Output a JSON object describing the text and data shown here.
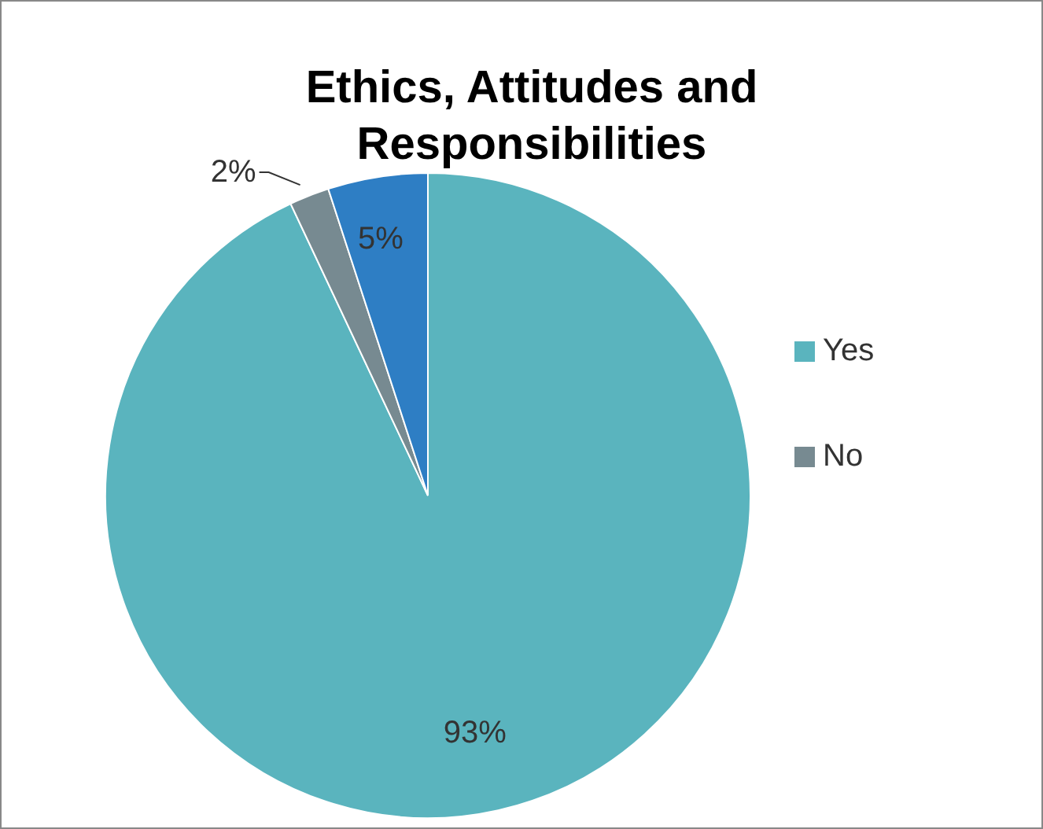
{
  "chart_data": {
    "type": "pie",
    "title": "Ethics, Attitudes and Responsibilities",
    "categories": [
      "Yes",
      "No",
      null
    ],
    "values": [
      93,
      2,
      5
    ],
    "colors": [
      "#5ab4be",
      "#778a91",
      "#2e7ec4"
    ],
    "value_labels": [
      "93%",
      "2%",
      "5%"
    ],
    "legend": "right"
  }
}
